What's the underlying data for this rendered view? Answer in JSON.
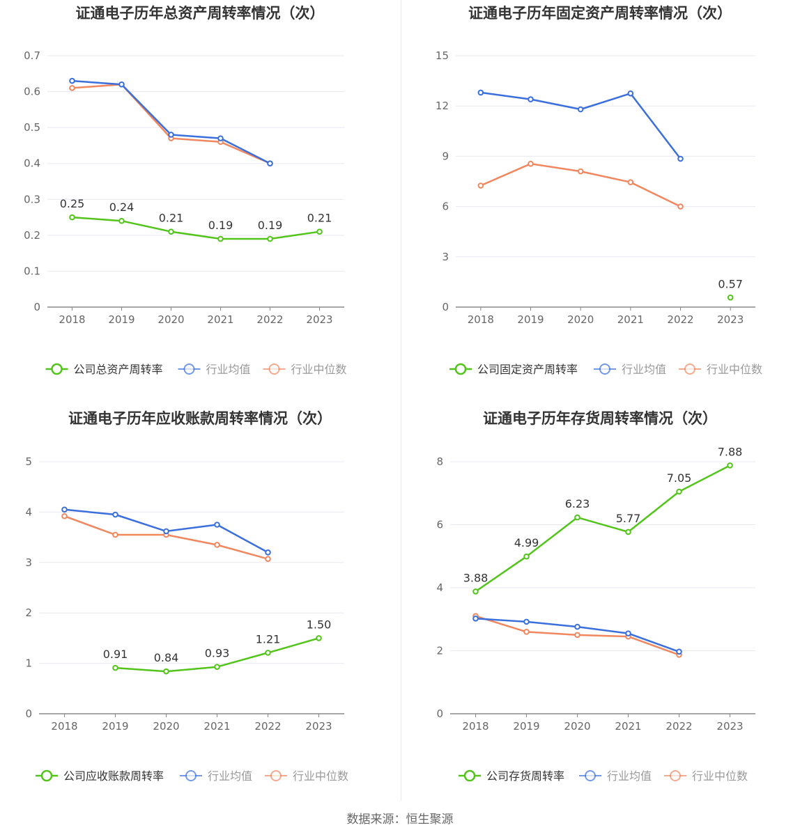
{
  "source": "数据来源：恒生聚源",
  "colors": {
    "company": "#52c41a",
    "avg": "#3a6fdc",
    "median": "#f0875f",
    "grid": "#e8e8f0",
    "axis": "#888888"
  },
  "chart_data": [
    {
      "type": "line",
      "title": "证通电子历年总资产周转率情况（次）",
      "categories": [
        "2018",
        "2019",
        "2020",
        "2021",
        "2022",
        "2023"
      ],
      "ylim": [
        0,
        0.7
      ],
      "yticks": [
        "0",
        "0.1",
        "0.2",
        "0.3",
        "0.4",
        "0.5",
        "0.6",
        "0.7"
      ],
      "series": [
        {
          "name": "公司总资产周转率",
          "role": "company",
          "values": [
            0.25,
            0.24,
            0.21,
            0.19,
            0.19,
            0.21
          ],
          "labels": [
            "0.25",
            "0.24",
            "0.21",
            "0.19",
            "0.19",
            "0.21"
          ]
        },
        {
          "name": "行业均值",
          "role": "avg",
          "values": [
            0.63,
            0.62,
            0.48,
            0.47,
            0.4,
            null
          ]
        },
        {
          "name": "行业中位数",
          "role": "median",
          "values": [
            0.61,
            0.62,
            0.47,
            0.46,
            0.4,
            null
          ]
        }
      ],
      "legend": "bottom"
    },
    {
      "type": "line",
      "title": "证通电子历年固定资产周转率情况（次）",
      "categories": [
        "2018",
        "2019",
        "2020",
        "2021",
        "2022",
        "2023"
      ],
      "ylim": [
        0,
        15
      ],
      "yticks": [
        "0",
        "3",
        "6",
        "9",
        "12",
        "15"
      ],
      "series": [
        {
          "name": "公司固定资产周转率",
          "role": "company",
          "values": [
            null,
            null,
            null,
            null,
            null,
            0.57
          ],
          "labels": [
            null,
            null,
            null,
            null,
            null,
            "0.57"
          ]
        },
        {
          "name": "行业均值",
          "role": "avg",
          "values": [
            12.8,
            12.4,
            11.8,
            12.75,
            8.85,
            null
          ]
        },
        {
          "name": "行业中位数",
          "role": "median",
          "values": [
            7.25,
            8.55,
            8.1,
            7.45,
            6.0,
            null
          ]
        }
      ],
      "legend": "bottom"
    },
    {
      "type": "line",
      "title": "证通电子历年应收账款周转率情况（次）",
      "categories": [
        "2018",
        "2019",
        "2020",
        "2021",
        "2022",
        "2023"
      ],
      "ylim": [
        0,
        5
      ],
      "yticks": [
        "0",
        "1",
        "2",
        "3",
        "4",
        "5"
      ],
      "series": [
        {
          "name": "公司应收账款周转率",
          "role": "company",
          "values": [
            null,
            0.91,
            0.84,
            0.93,
            1.21,
            1.5
          ],
          "labels": [
            null,
            "0.91",
            "0.84",
            "0.93",
            "1.21",
            "1.50"
          ]
        },
        {
          "name": "行业均值",
          "role": "avg",
          "values": [
            4.05,
            3.95,
            3.62,
            3.75,
            3.2,
            null
          ]
        },
        {
          "name": "行业中位数",
          "role": "median",
          "values": [
            3.92,
            3.55,
            3.55,
            3.35,
            3.07,
            null
          ]
        }
      ],
      "legend": "bottom"
    },
    {
      "type": "line",
      "title": "证通电子历年存货周转率情况（次）",
      "categories": [
        "2018",
        "2019",
        "2020",
        "2021",
        "2022",
        "2023"
      ],
      "ylim": [
        0,
        8
      ],
      "yticks": [
        "0",
        "2",
        "4",
        "6",
        "8"
      ],
      "series": [
        {
          "name": "公司存货周转率",
          "role": "company",
          "values": [
            3.88,
            4.99,
            6.23,
            5.77,
            7.05,
            7.88
          ],
          "labels": [
            "3.88",
            "4.99",
            "6.23",
            "5.77",
            "7.05",
            "7.88"
          ]
        },
        {
          "name": "行业均值",
          "role": "avg",
          "values": [
            3.02,
            2.92,
            2.76,
            2.55,
            1.97,
            null
          ]
        },
        {
          "name": "行业中位数",
          "role": "median",
          "values": [
            3.1,
            2.6,
            2.5,
            2.45,
            1.87,
            null
          ]
        }
      ],
      "legend": "bottom"
    }
  ]
}
